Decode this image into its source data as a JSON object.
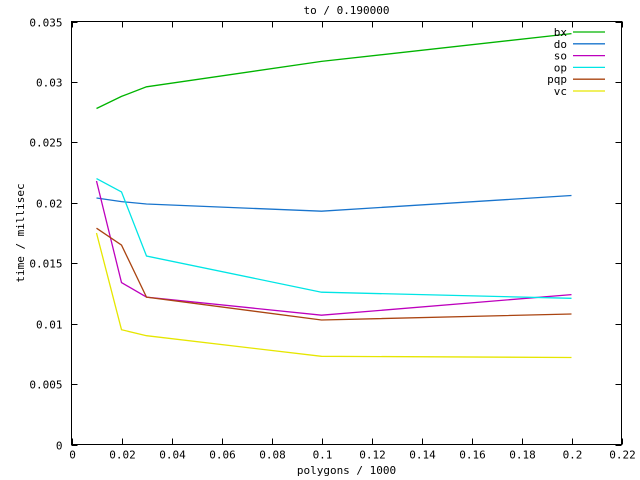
{
  "window": {
    "background": "#ffffff",
    "foreground": "#000000"
  },
  "chart_data": {
    "type": "line",
    "title": "to / 0.190000",
    "xlabel": "polygons / 1000",
    "ylabel": "time / millisec",
    "xlim": [
      0,
      0.22
    ],
    "ylim": [
      0,
      0.035
    ],
    "xticks": [
      0,
      0.02,
      0.04,
      0.06,
      0.08,
      0.1,
      0.12,
      0.14,
      0.16,
      0.18,
      0.2,
      0.22
    ],
    "xtick_labels": [
      "0",
      "0.02",
      "0.04",
      "0.06",
      "0.08",
      "0.1",
      "0.12",
      "0.14",
      "0.16",
      "0.18",
      "0.2",
      "0.22"
    ],
    "yticks": [
      0,
      0.005,
      0.01,
      0.015,
      0.02,
      0.025,
      0.03,
      0.035
    ],
    "ytick_labels": [
      "0",
      "0.005",
      "0.01",
      "0.015",
      "0.02",
      "0.025",
      "0.03",
      "0.035"
    ],
    "grid": false,
    "legend_position": "top-right-inside",
    "x": [
      0.01,
      0.02,
      0.03,
      0.1,
      0.2
    ],
    "series": [
      {
        "name": "bx",
        "color": "#00b400",
        "values": [
          0.0278,
          0.0288,
          0.0296,
          0.0317,
          0.034
        ]
      },
      {
        "name": "do",
        "color": "#1874cd",
        "values": [
          0.0204,
          0.0201,
          0.0199,
          0.0193,
          0.0206
        ]
      },
      {
        "name": "so",
        "color": "#bd00bd",
        "values": [
          0.0218,
          0.0134,
          0.0122,
          0.0107,
          0.0124
        ]
      },
      {
        "name": "op",
        "color": "#00e5e5",
        "values": [
          0.022,
          0.0209,
          0.0156,
          0.0126,
          0.0121
        ]
      },
      {
        "name": "pqp",
        "color": "#aa4411",
        "values": [
          0.0179,
          0.0165,
          0.0122,
          0.0103,
          0.0108
        ]
      },
      {
        "name": "vc",
        "color": "#e6e600",
        "values": [
          0.0175,
          0.0095,
          0.009,
          0.0073,
          0.0072
        ]
      }
    ]
  }
}
